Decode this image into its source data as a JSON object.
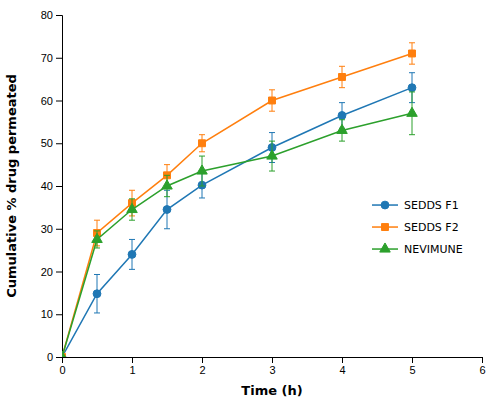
{
  "chart_data": {
    "type": "line",
    "x_label": "Time (h)",
    "y_label": "Cumulative % drug permeated",
    "x": [
      0,
      0.5,
      1.0,
      1.5,
      2.0,
      3.0,
      4.0,
      5.0
    ],
    "series": [
      {
        "name": "SEDDS F1",
        "marker": "circle",
        "values": [
          0,
          14.8,
          24.0,
          34.5,
          40.2,
          49.0,
          56.5,
          63.0
        ],
        "errors": [
          0,
          4.5,
          3.5,
          4.5,
          3.0,
          3.5,
          3.0,
          3.5
        ]
      },
      {
        "name": "SEDDS F2",
        "marker": "square",
        "values": [
          0,
          29.0,
          36.0,
          42.5,
          50.0,
          60.0,
          65.5,
          71.0
        ],
        "errors": [
          0,
          3.0,
          3.0,
          2.5,
          2.0,
          2.5,
          2.5,
          2.5
        ]
      },
      {
        "name": "NEVIMUNE",
        "marker": "triangle",
        "values": [
          0,
          27.5,
          34.5,
          40.0,
          43.5,
          47.0,
          53.0,
          57.0
        ],
        "errors": [
          0,
          2.0,
          2.5,
          2.5,
          3.5,
          3.5,
          2.5,
          5.0
        ]
      }
    ],
    "xlim": [
      0,
      6
    ],
    "ylim": [
      0,
      80
    ],
    "xticks": [
      0,
      1,
      2,
      3,
      4,
      5,
      6
    ],
    "yticks": [
      0,
      10,
      20,
      30,
      40,
      50,
      60,
      70,
      80
    ],
    "legend": "right"
  }
}
